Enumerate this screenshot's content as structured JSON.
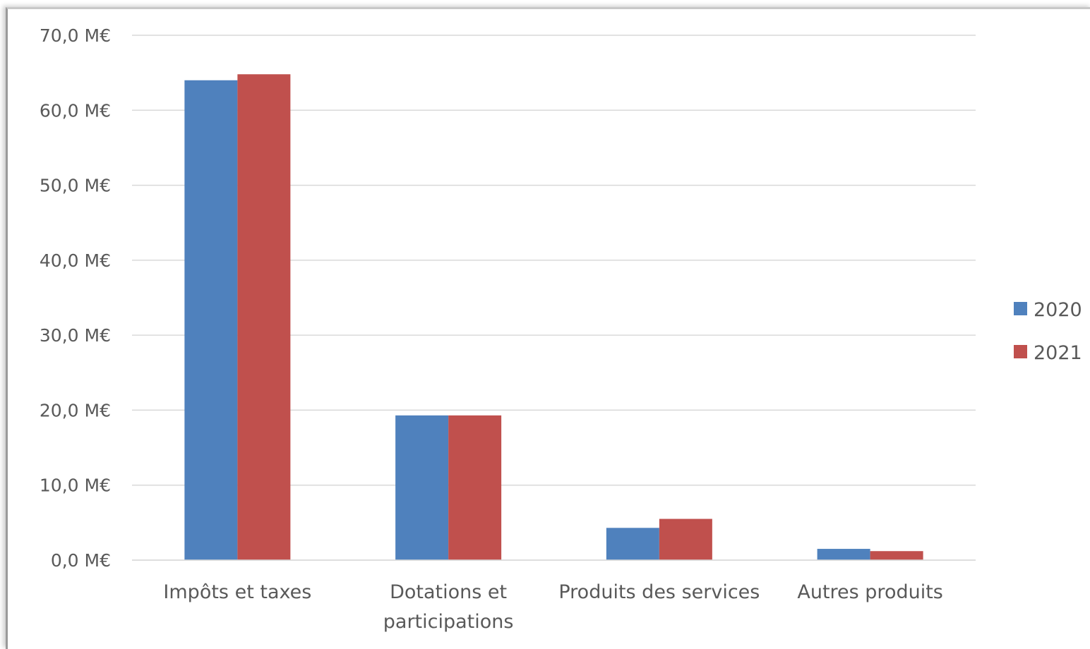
{
  "chart_data": {
    "type": "bar",
    "categories": [
      [
        "Impôts et taxes"
      ],
      [
        "Dotations et",
        "participations"
      ],
      [
        "Produits des services"
      ],
      [
        "Autres produits"
      ]
    ],
    "series": [
      {
        "name": "2020",
        "color": "#4F81BD",
        "values": [
          64.0,
          19.3,
          4.3,
          1.5
        ]
      },
      {
        "name": "2021",
        "color": "#C0504D",
        "values": [
          64.8,
          19.3,
          5.5,
          1.2
        ]
      }
    ],
    "y_ticks": [
      "0,0 M€",
      "10,0 M€",
      "20,0 M€",
      "30,0 M€",
      "40,0 M€",
      "50,0 M€",
      "60,0 M€",
      "70,0 M€"
    ],
    "ylim": [
      0,
      70
    ],
    "grid": true,
    "legend_position": "right",
    "gridline_color": "#d9d9d9"
  }
}
